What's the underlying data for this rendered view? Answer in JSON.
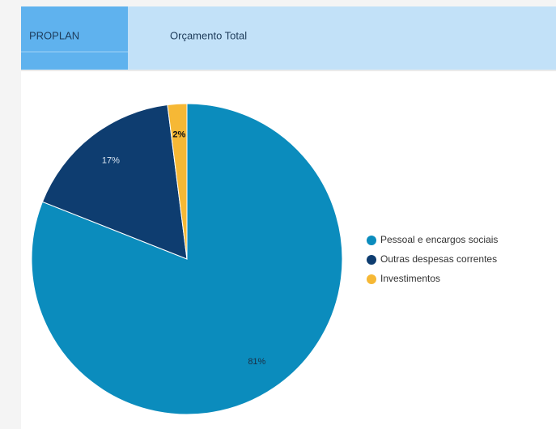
{
  "tabs": [
    "PROPLAN",
    "Orçamento Total"
  ],
  "chart_data": {
    "type": "pie",
    "categories": [
      "Pessoal e encargos sociais",
      "Outras despesas correntes",
      "Investimentos"
    ],
    "values": [
      81,
      17,
      2
    ],
    "value_labels": [
      "81%",
      "17%",
      "2%"
    ],
    "colors": [
      "#0b8cbd",
      "#0e3d70",
      "#f6b835"
    ],
    "legend": "right"
  }
}
